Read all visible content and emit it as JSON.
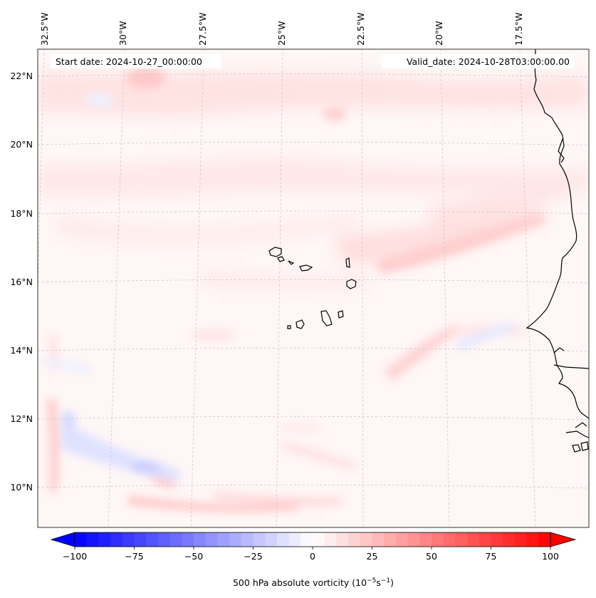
{
  "map": {
    "start_label": "Start date: 2024-10-27_00:00:00",
    "valid_label": "Valid_date: 2024-10-28T03:00:00.00",
    "lon_labels": [
      "32.5°W",
      "30°W",
      "27.5°W",
      "25°W",
      "22.5°W",
      "20°W",
      "17.5°W"
    ],
    "lat_labels": [
      "22°N",
      "20°N",
      "18°N",
      "16°N",
      "14°N",
      "12°N",
      "10°N"
    ],
    "gridlines": true,
    "colors": {
      "coastline": "#000000",
      "gridline": "#bbbbbb",
      "positive": "#ff0000",
      "negative": "#0000ff"
    }
  },
  "colorbar": {
    "ticks": [
      "−100",
      "−75",
      "−50",
      "−25",
      "0",
      "25",
      "50",
      "75",
      "100"
    ],
    "label": "500 hPa absolute vorticity (10",
    "label_exp1": "−5",
    "label_mid": "s",
    "label_exp2": "−1",
    "label_end": ")",
    "min": -100,
    "max": 100
  }
}
